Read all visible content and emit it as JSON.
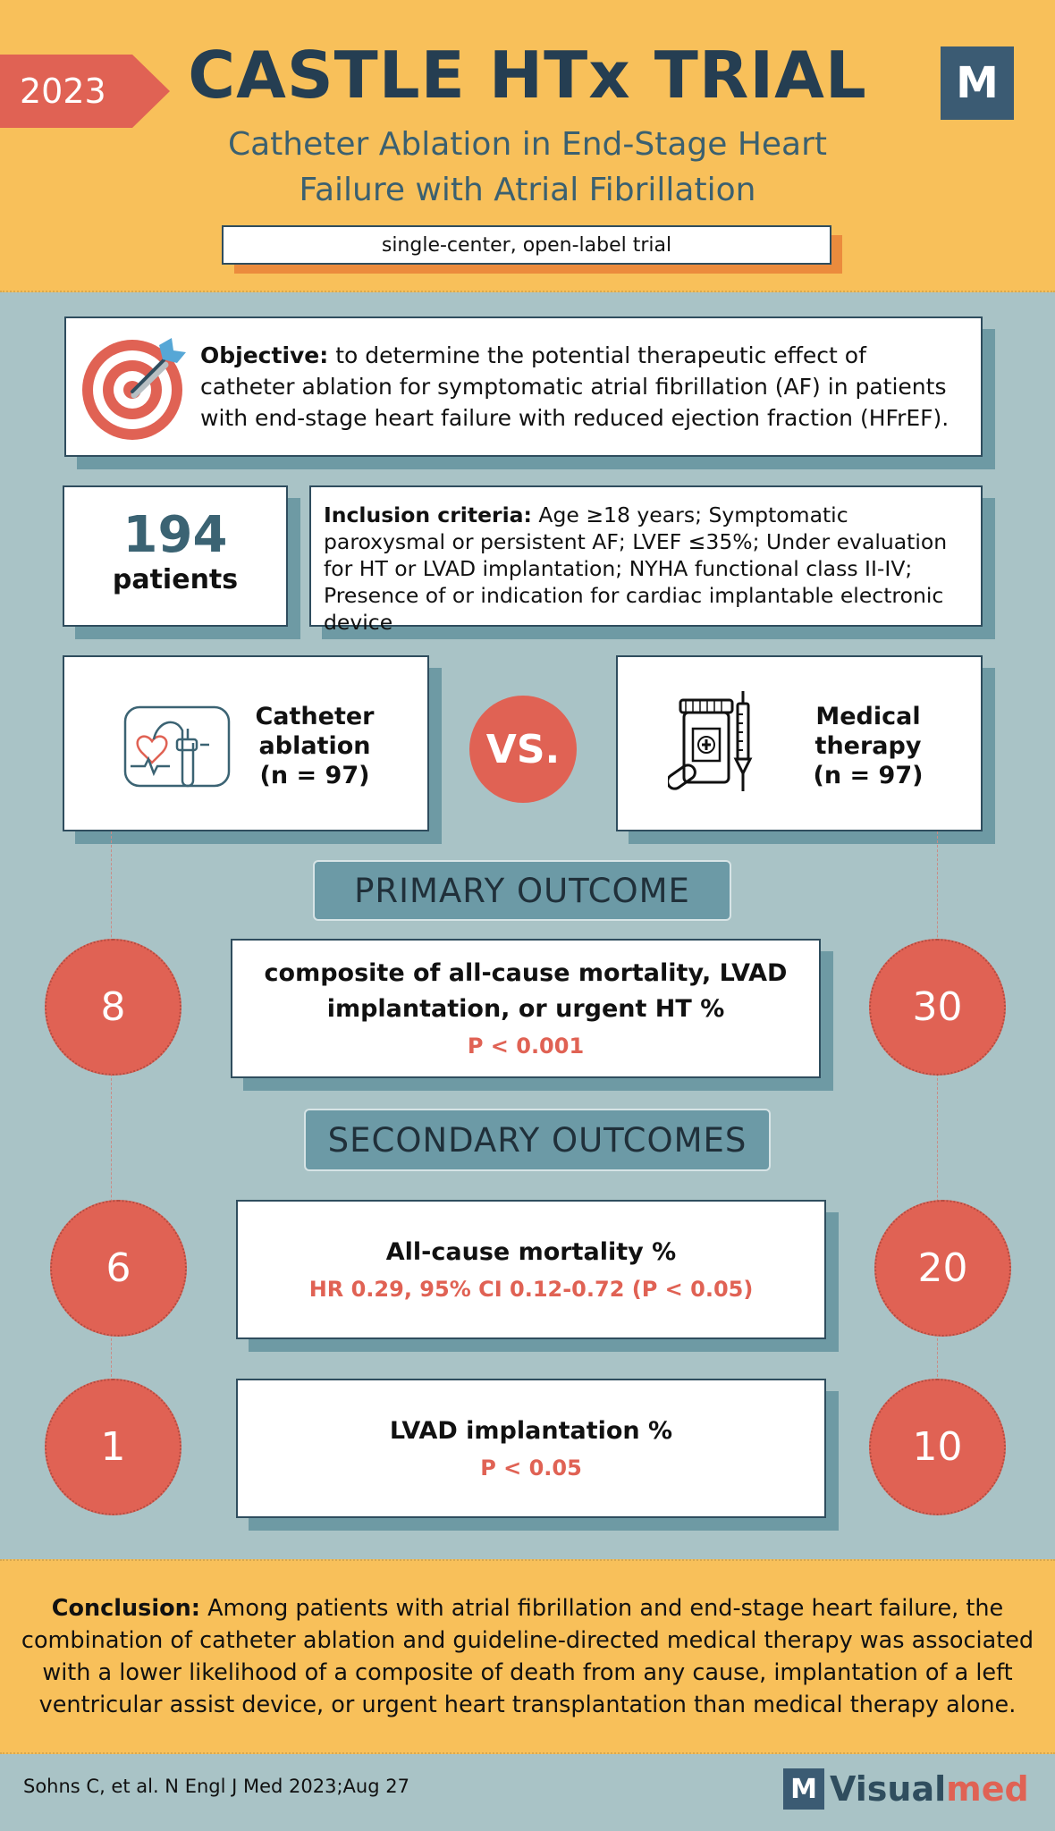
{
  "header": {
    "year": "2023",
    "title": "CASTLE HTx TRIAL",
    "logo_letter": "M",
    "subtitle_line1": "Catheter Ablation in End-Stage Heart",
    "subtitle_line2": "Failure with Atrial Fibrillation",
    "design": "single-center, open-label trial"
  },
  "objective": {
    "label": "Objective:",
    "text": " to determine the potential therapeutic effect of catheter ablation for symptomatic atrial fibrillation (AF) in patients with end-stage heart failure with reduced ejection fraction (HFrEF).",
    "icon": "target-icon"
  },
  "population": {
    "count": "194",
    "count_label": "patients",
    "criteria_label": "Inclusion criteria:",
    "criteria_text": " Age ≥18 years; Symptomatic paroxysmal or persistent AF; LVEF ≤35%; Under evaluation for HT or LVAD implantation; NYHA functional class II-IV; Presence of or indication for cardiac implantable electronic device"
  },
  "arms": {
    "left": {
      "line1": "Catheter",
      "line2": "ablation",
      "line3": "(n = 97)",
      "icon": "catheter-heart-icon"
    },
    "vs": "VS.",
    "right": {
      "line1": "Medical",
      "line2": "therapy",
      "line3": "(n = 97)",
      "icon": "medication-syringe-icon"
    }
  },
  "primary": {
    "heading": "PRIMARY OUTCOME",
    "line1": "composite of all-cause mortality, LVAD",
    "line2": "implantation, or urgent HT  %",
    "stat": "P < 0.001",
    "left_value": "8",
    "right_value": "30"
  },
  "secondary": {
    "heading": "SECONDARY OUTCOMES",
    "items": [
      {
        "title": "All-cause mortality %",
        "stat": "HR 0.29, 95% CI 0.12-0.72 (P < 0.05)",
        "left_value": "6",
        "right_value": "20"
      },
      {
        "title": "LVAD implantation %",
        "stat": "P < 0.05",
        "left_value": "1",
        "right_value": "10"
      }
    ]
  },
  "conclusion": {
    "label": "Conclusion:",
    "text": " Among patients with atrial fibrillation and end-stage heart failure, the combination of catheter ablation and guideline-directed medical therapy was associated with a lower likelihood of a composite of death from any cause, implantation of a left ventricular assist device, or urgent heart transplantation than medical therapy alone."
  },
  "footer": {
    "citation": "Sohns C,  et al.  N Engl J Med 2023;Aug 27",
    "logo_mark": "M",
    "logo_word_a": "Visual",
    "logo_word_b": "med"
  },
  "colors": {
    "header_bg": "#f8c05a",
    "body_bg": "#a9c3c6",
    "accent_red": "#e06254",
    "navy": "#253e52"
  }
}
